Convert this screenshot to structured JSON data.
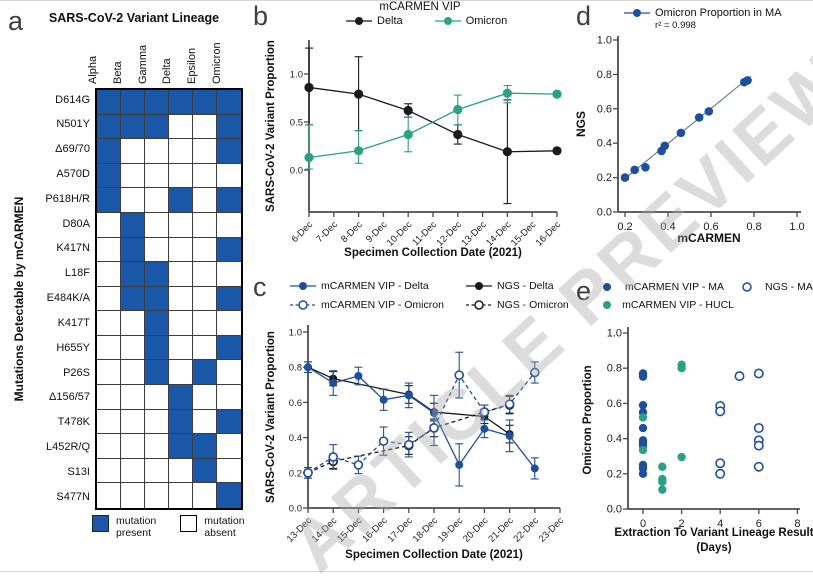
{
  "watermark": "ARTICLE PREVIEW",
  "colors": {
    "blue": "#1d4f9c",
    "teal": "#2aa181",
    "heatmap_blue": "#1b57a8",
    "black": "#1a1a1a",
    "axis": "#4c4c4e",
    "fit_line_blue": "#4a74b8",
    "watermark_gray": "#a8a8a8"
  },
  "panels": {
    "a": {
      "letter": "a",
      "title": "SARS-CoV-2 Variant Lineage",
      "ylabel": "Mutations Detectable by mCARMEN",
      "columns": [
        "Alpha",
        "Beta",
        "Gamma",
        "Delta",
        "Epsilon",
        "Omicron"
      ],
      "rows": [
        "D614G",
        "N501Y",
        "Δ69/70",
        "A570D",
        "P618H/R",
        "D80A",
        "K417N",
        "L18F",
        "E484K/A",
        "K417T",
        "H655Y",
        "P26S",
        "Δ156/57",
        "T478K",
        "L452R/Q",
        "S13I",
        "S477N"
      ],
      "matrix": [
        [
          1,
          1,
          1,
          1,
          1,
          1
        ],
        [
          1,
          1,
          1,
          0,
          0,
          1
        ],
        [
          1,
          0,
          0,
          0,
          0,
          1
        ],
        [
          1,
          0,
          0,
          0,
          0,
          0
        ],
        [
          1,
          0,
          0,
          1,
          0,
          1
        ],
        [
          0,
          1,
          0,
          0,
          0,
          0
        ],
        [
          0,
          1,
          0,
          0,
          0,
          1
        ],
        [
          0,
          1,
          1,
          0,
          0,
          0
        ],
        [
          0,
          1,
          1,
          0,
          0,
          1
        ],
        [
          0,
          0,
          1,
          0,
          0,
          0
        ],
        [
          0,
          0,
          1,
          0,
          0,
          1
        ],
        [
          0,
          0,
          1,
          0,
          1,
          0
        ],
        [
          0,
          0,
          0,
          1,
          0,
          0
        ],
        [
          0,
          0,
          0,
          1,
          0,
          1
        ],
        [
          0,
          0,
          0,
          1,
          1,
          0
        ],
        [
          0,
          0,
          0,
          0,
          1,
          0
        ],
        [
          0,
          0,
          0,
          0,
          0,
          1
        ]
      ],
      "legend": [
        {
          "label_line1": "mutation",
          "label_line2": "present",
          "type": "present"
        },
        {
          "label_line1": "mutation",
          "label_line2": "absent",
          "type": "absent"
        }
      ]
    },
    "b": {
      "letter": "b"
    },
    "c": {
      "letter": "c"
    },
    "d": {
      "letter": "d"
    },
    "e": {
      "letter": "e"
    }
  },
  "chart_data": [
    {
      "panel": "b",
      "type": "line",
      "title": "mCARMEN VIP",
      "xlabel": "Specimen Collection Date (2021)",
      "ylabel": "SARS-CoV-2 Variant Proportion",
      "x_tick_labels": [
        "6-Dec",
        "7-Dec",
        "8-Dec",
        "9-Dec",
        "10-Dec",
        "11-Dec",
        "12-Dec",
        "13-Dec",
        "14-Dec",
        "15-Dec",
        "16-Dec"
      ],
      "x_tick_values": [
        6,
        7,
        8,
        9,
        10,
        11,
        12,
        13,
        14,
        15,
        16
      ],
      "y_tick_labels": [
        "0.0",
        "0.5",
        "1.0"
      ],
      "y_tick_values": [
        0,
        0.5,
        1
      ],
      "xlim": [
        6,
        16
      ],
      "ylim": [
        0,
        1
      ],
      "legend_position": "top",
      "series": [
        {
          "name": "Delta",
          "color": "#1a1a1a",
          "marker": "filled",
          "line": "solid",
          "x": [
            6,
            8,
            10,
            12,
            14,
            16
          ],
          "y": [
            0.86,
            0.79,
            0.62,
            0.37,
            0.19,
            0.2
          ],
          "err_lo": [
            0.47,
            0.41,
            0.55,
            0.27,
            -0.35,
            0.18
          ],
          "err_hi": [
            1.27,
            1.18,
            0.69,
            0.47,
            0.73,
            0.22
          ]
        },
        {
          "name": "Omicron",
          "color": "#2aa181",
          "marker": "filled",
          "line": "solid",
          "x": [
            6,
            8,
            10,
            12,
            14,
            16
          ],
          "y": [
            0.13,
            0.2,
            0.37,
            0.63,
            0.8,
            0.79
          ],
          "err_lo": [
            0.01,
            0.07,
            0.19,
            0.47,
            0.7,
            0.77
          ],
          "err_hi": [
            0.47,
            0.41,
            0.55,
            0.78,
            0.88,
            0.81
          ]
        }
      ]
    },
    {
      "panel": "c",
      "type": "line",
      "xlabel": "Specimen Collection Date (2021)",
      "ylabel": "SARS-CoV-2 Variant Proportion",
      "x_tick_labels": [
        "13-Dec",
        "14-Dec",
        "15-Dec",
        "16-Dec",
        "17-Dec",
        "18-Dec",
        "19-Dec",
        "20-Dec",
        "21-Dec",
        "22-Dec",
        "23-Dec"
      ],
      "x_tick_values": [
        13,
        14,
        15,
        16,
        17,
        18,
        19,
        20,
        21,
        22,
        23
      ],
      "y_tick_labels": [
        "0.0",
        "0.2",
        "0.4",
        "0.6",
        "0.8",
        "1.0"
      ],
      "y_tick_values": [
        0,
        0.2,
        0.4,
        0.6,
        0.8,
        1
      ],
      "xlim": [
        13,
        23
      ],
      "ylim": [
        0,
        1
      ],
      "legend_position": "top",
      "series": [
        {
          "name": "mCARMEN VIP - Delta",
          "color": "#1d4f9c",
          "marker": "filled",
          "line": "solid",
          "x": [
            13,
            14,
            15,
            16,
            17,
            18,
            19,
            20,
            21,
            22
          ],
          "y": [
            0.8,
            0.71,
            0.75,
            0.615,
            0.64,
            0.54,
            0.245,
            0.45,
            0.41,
            0.225
          ],
          "err": [
            0.03,
            0.07,
            0.05,
            0.06,
            0.07,
            0.1,
            0.12,
            0.05,
            0.09,
            0.06
          ]
        },
        {
          "name": "NGS - Delta",
          "color": "#1a1a1a",
          "marker": "filled",
          "line": "solid",
          "x": [
            13,
            14,
            17,
            18,
            20,
            21
          ],
          "y": [
            0.8,
            0.735,
            0.645,
            0.545,
            0.52,
            0.42
          ],
          "err": [
            0.03,
            0.04,
            0.05,
            0.05,
            0.04,
            0.05
          ]
        },
        {
          "name": "mCARMEN VIP - Omicron",
          "color": "#1d4f9c",
          "marker": "open",
          "line": "dashed",
          "x": [
            13,
            14,
            15,
            16,
            17,
            18,
            19,
            20,
            21,
            22
          ],
          "y": [
            0.2,
            0.29,
            0.245,
            0.38,
            0.36,
            0.455,
            0.755,
            0.545,
            0.59,
            0.77
          ],
          "err": [
            0.03,
            0.07,
            0.05,
            0.08,
            0.07,
            0.1,
            0.13,
            0.04,
            0.05,
            0.06
          ]
        },
        {
          "name": "NGS - Omicron",
          "color": "#1a1a1a",
          "marker": "open",
          "line": "dashed",
          "x": [
            13,
            14,
            17,
            18,
            20,
            21
          ],
          "y": [
            0.2,
            0.265,
            0.355,
            0.455,
            0.545,
            0.585
          ],
          "err": [
            0.03,
            0.04,
            0.05,
            0.05,
            0.04,
            0.05
          ]
        }
      ]
    },
    {
      "panel": "d",
      "type": "scatter",
      "legend_label": "Omicron Proportion in MA",
      "r2_label": "r² = 0.998",
      "xlabel": "mCARMEN",
      "ylabel": "NGS",
      "x_tick_labels": [
        "0.2",
        "0.4",
        "0.6",
        "0.8",
        "1.0"
      ],
      "x_tick_values": [
        0.2,
        0.4,
        0.6,
        0.8,
        1
      ],
      "y_tick_labels": [
        "0.0",
        "0.2",
        "0.4",
        "0.6",
        "0.8",
        "1.0"
      ],
      "y_tick_values": [
        0,
        0.2,
        0.4,
        0.6,
        0.8,
        1
      ],
      "xlim": [
        0.17,
        1.03
      ],
      "ylim": [
        0,
        1
      ],
      "point_color": "#1d4f9c",
      "points": [
        [
          0.2,
          0.2
        ],
        [
          0.245,
          0.245
        ],
        [
          0.295,
          0.26
        ],
        [
          0.37,
          0.355
        ],
        [
          0.385,
          0.385
        ],
        [
          0.46,
          0.46
        ],
        [
          0.545,
          0.55
        ],
        [
          0.59,
          0.585
        ],
        [
          0.755,
          0.755
        ],
        [
          0.77,
          0.765
        ]
      ],
      "fit_line": {
        "x1": 0.19,
        "y1": 0.185,
        "x2": 0.785,
        "y2": 0.79
      }
    },
    {
      "panel": "e",
      "type": "scatter",
      "xlabel_line1": "Extraction To Variant Lineage Result",
      "xlabel_line2": "(Days)",
      "ylabel": "Omicron Proportion",
      "x_tick_labels": [
        "0",
        "2",
        "4",
        "6",
        "8"
      ],
      "x_tick_values": [
        0,
        2,
        4,
        6,
        8
      ],
      "y_tick_labels": [
        "0.0",
        "0.2",
        "0.4",
        "0.6",
        "0.8",
        "1.0"
      ],
      "y_tick_values": [
        0,
        0.2,
        0.4,
        0.6,
        0.8,
        1
      ],
      "xlim": [
        -0.8,
        8.2
      ],
      "ylim": [
        0,
        1
      ],
      "series": [
        {
          "name": "mCARMEN VIP - MA",
          "color": "#1d4f9c",
          "marker": "filled",
          "points": [
            [
              0,
              0.77
            ],
            [
              0,
              0.762
            ],
            [
              0,
              0.752
            ],
            [
              0,
              0.59
            ],
            [
              0,
              0.55
            ],
            [
              0,
              0.46
            ],
            [
              0,
              0.39
            ],
            [
              0,
              0.375
            ],
            [
              0,
              0.36
            ],
            [
              0,
              0.25
            ],
            [
              0,
              0.23
            ],
            [
              0,
              0.2
            ]
          ]
        },
        {
          "name": "NGS - MA",
          "color": "#1d4f9c",
          "marker": "open",
          "points": [
            [
              4,
              0.585
            ],
            [
              4,
              0.555
            ],
            [
              4,
              0.26
            ],
            [
              4,
              0.2
            ],
            [
              5,
              0.755
            ],
            [
              6,
              0.77
            ],
            [
              6,
              0.46
            ],
            [
              6,
              0.39
            ],
            [
              6,
              0.36
            ],
            [
              6,
              0.24
            ]
          ]
        },
        {
          "name": "mCARMEN VIP - HUCL",
          "color": "#2aa181",
          "marker": "filled",
          "points": [
            [
              0,
              0.52
            ],
            [
              0,
              0.335
            ],
            [
              1,
              0.24
            ],
            [
              1,
              0.17
            ],
            [
              1,
              0.155
            ],
            [
              1,
              0.11
            ],
            [
              2,
              0.82
            ],
            [
              2,
              0.8
            ],
            [
              2,
              0.295
            ]
          ]
        }
      ]
    }
  ]
}
